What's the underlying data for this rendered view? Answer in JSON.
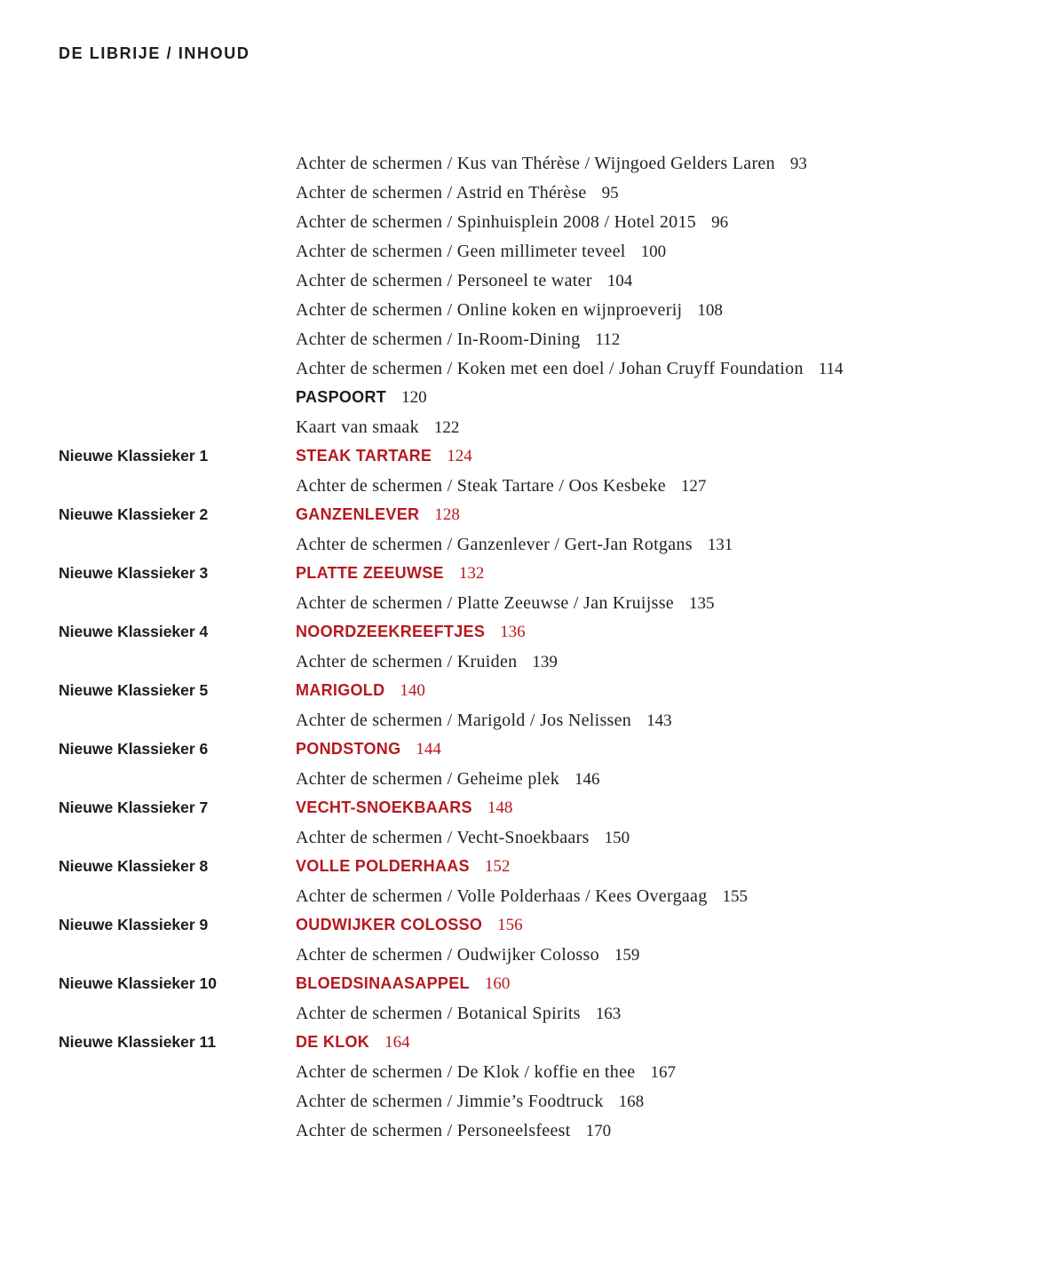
{
  "page": {
    "background": "#ffffff",
    "text_color": "#222222",
    "accent_red": "#b6191f"
  },
  "header": {
    "title": "DE LIBRIJE / INHOUD"
  },
  "toc": {
    "rows": [
      {
        "label": "",
        "title": "Achter de schermen / Kus van Thérèse / Wijngoed Gelders Laren",
        "page": "93",
        "style": "serif"
      },
      {
        "label": "",
        "title": "Achter de schermen / Astrid en Thérèse",
        "page": "95",
        "style": "serif"
      },
      {
        "label": "",
        "title": "Achter de schermen / Spinhuisplein 2008 / Hotel 2015",
        "page": "96",
        "style": "serif"
      },
      {
        "label": "",
        "title": "Achter de schermen / Geen millimeter teveel",
        "page": "100",
        "style": "serif"
      },
      {
        "label": "",
        "title": "Achter de schermen / Personeel te water",
        "page": "104",
        "style": "serif"
      },
      {
        "label": "",
        "title": "Achter de schermen / Online koken en wijnproeverij",
        "page": "108",
        "style": "serif"
      },
      {
        "label": "",
        "title": "Achter de schermen / In-Room-Dining",
        "page": "112",
        "style": "serif"
      },
      {
        "label": "",
        "title": "Achter de schermen / Koken met een doel / Johan Cruyff Foundation",
        "page": "114",
        "style": "serif"
      },
      {
        "label": "",
        "title": "PASPOORT",
        "page": "120",
        "style": "caps-black"
      },
      {
        "label": "",
        "title": "Kaart van smaak",
        "page": "122",
        "style": "serif"
      },
      {
        "label": "Nieuwe Klassieker 1",
        "title": "STEAK TARTARE",
        "page": "124",
        "style": "caps-red"
      },
      {
        "label": "",
        "title": "Achter de schermen / Steak Tartare / Oos Kesbeke",
        "page": "127",
        "style": "serif"
      },
      {
        "label": "Nieuwe Klassieker 2",
        "title": "GANZENLEVER",
        "page": "128",
        "style": "caps-red"
      },
      {
        "label": "",
        "title": "Achter de schermen / Ganzenlever / Gert-Jan Rotgans",
        "page": "131",
        "style": "serif"
      },
      {
        "label": "Nieuwe Klassieker 3",
        "title": "PLATTE ZEEUWSE",
        "page": "132",
        "style": "caps-red"
      },
      {
        "label": "",
        "title": "Achter de schermen / Platte Zeeuwse / Jan Kruijsse",
        "page": "135",
        "style": "serif"
      },
      {
        "label": "Nieuwe Klassieker 4",
        "title": "NOORDZEEKREEFTJES",
        "page": "136",
        "style": "caps-red"
      },
      {
        "label": "",
        "title": "Achter de schermen / Kruiden",
        "page": "139",
        "style": "serif"
      },
      {
        "label": "Nieuwe Klassieker 5",
        "title": "MARIGOLD",
        "page": "140",
        "style": "caps-red"
      },
      {
        "label": "",
        "title": "Achter de schermen / Marigold / Jos Nelissen",
        "page": "143",
        "style": "serif"
      },
      {
        "label": "Nieuwe Klassieker 6",
        "title": "PONDSTONG",
        "page": "144",
        "style": "caps-red"
      },
      {
        "label": "",
        "title": "Achter de schermen / Geheime plek",
        "page": "146",
        "style": "serif"
      },
      {
        "label": "Nieuwe Klassieker 7",
        "title": "VECHT-SNOEKBAARS",
        "page": "148",
        "style": "caps-red"
      },
      {
        "label": "",
        "title": "Achter de schermen / Vecht-Snoekbaars",
        "page": "150",
        "style": "serif"
      },
      {
        "label": "Nieuwe Klassieker 8",
        "title": "VOLLE POLDERHAAS",
        "page": "152",
        "style": "caps-red"
      },
      {
        "label": "",
        "title": "Achter de schermen / Volle Polderhaas / Kees Overgaag",
        "page": "155",
        "style": "serif"
      },
      {
        "label": "Nieuwe Klassieker 9",
        "title": "OUDWIJKER COLOSSO",
        "page": "156",
        "style": "caps-red"
      },
      {
        "label": "",
        "title": "Achter de schermen / Oudwijker Colosso",
        "page": "159",
        "style": "serif"
      },
      {
        "label": "Nieuwe Klassieker 10",
        "title": "BLOEDSINAASAPPEL",
        "page": "160",
        "style": "caps-red"
      },
      {
        "label": "",
        "title": "Achter de schermen / Botanical Spirits",
        "page": "163",
        "style": "serif"
      },
      {
        "label": "Nieuwe Klassieker 11",
        "title": "DE KLOK",
        "page": "164",
        "style": "caps-red"
      },
      {
        "label": "",
        "title": "Achter de schermen / De Klok / koffie en thee",
        "page": "167",
        "style": "serif"
      },
      {
        "label": "",
        "title": "Achter de schermen / Jimmie’s Foodtruck",
        "page": "168",
        "style": "serif"
      },
      {
        "label": "",
        "title": "Achter de schermen / Personeelsfeest",
        "page": "170",
        "style": "serif"
      }
    ]
  }
}
